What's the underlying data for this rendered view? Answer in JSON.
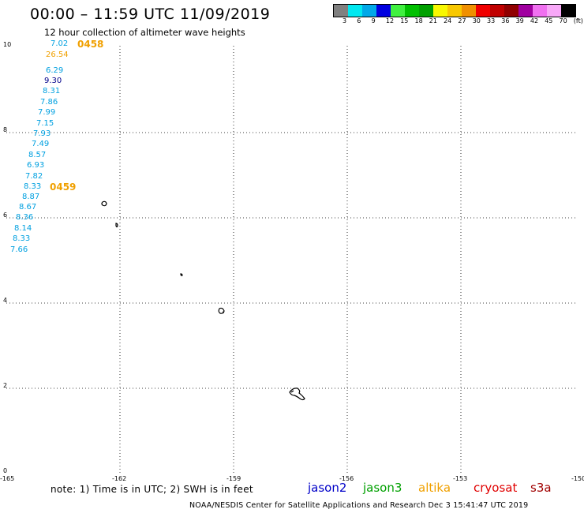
{
  "title": "00:00 – 11:59 UTC 11/09/2019",
  "subtitle": "12 hour collection of altimeter wave heights",
  "legend": {
    "colors": [
      "#808080",
      "#00e8f0",
      "#00a8e8",
      "#0000e0",
      "#40f040",
      "#00c000",
      "#00a000",
      "#f8f800",
      "#f8c800",
      "#f09000",
      "#f00000",
      "#c00000",
      "#900000",
      "#a000a0",
      "#f070f0",
      "#f8a8f8",
      "#000000"
    ],
    "labels": [
      "3",
      "6",
      "9",
      "12",
      "15",
      "18",
      "21",
      "24",
      "27",
      "30",
      "33",
      "36",
      "39",
      "42",
      "45",
      "70",
      "(ft)"
    ]
  },
  "axes": {
    "y_labels": [
      "10",
      "8",
      "6",
      "4",
      "2",
      "0"
    ],
    "x_labels": [
      "-165",
      "-162",
      "-159",
      "-156",
      "-153",
      "-150"
    ]
  },
  "orbits": [
    "0458",
    "0459"
  ],
  "wave_heights": [
    "7.02",
    "26.54",
    "6.29",
    "9.30",
    "8.31",
    "7.86",
    "7.99",
    "7.15",
    "7.93",
    "7.49",
    "8.57",
    "6.93",
    "7.82",
    "8.33",
    "8.87",
    "8.67",
    "8.36",
    "8.14",
    "8.33",
    "7.66"
  ],
  "note": "note: 1) Time is in UTC; 2) SWH is in feet",
  "satellites": [
    {
      "name": "jason2",
      "color": "#0000c8"
    },
    {
      "name": "jason3",
      "color": "#00a000"
    },
    {
      "name": "altika",
      "color": "#f0a000"
    },
    {
      "name": "cryosat",
      "color": "#e00000"
    },
    {
      "name": "s3a",
      "color": "#a00000"
    }
  ],
  "credit": "NOAA/NESDIS Center for Satellite Applications and Research   Dec  3 15:41:47 UTC 2019"
}
